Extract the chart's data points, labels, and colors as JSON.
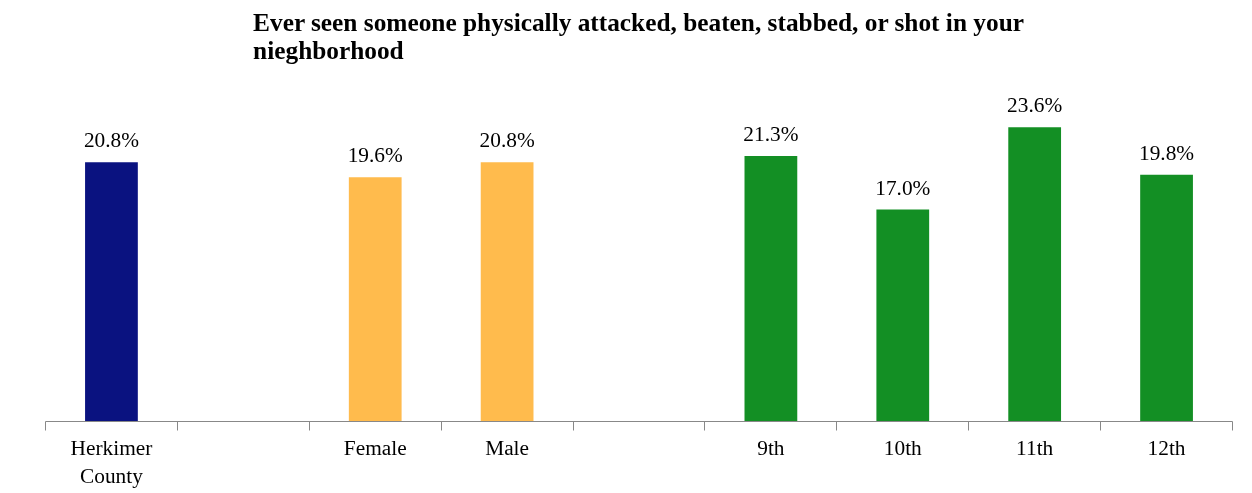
{
  "chart_data": {
    "type": "bar",
    "title": "Ever seen someone physically attacked, beaten, stabbed, or shot in your nieghborhood",
    "categories": [
      "Herkimer County",
      null,
      "Female",
      "Male",
      null,
      "9th",
      "10th",
      "11th",
      "12th"
    ],
    "values": [
      20.8,
      null,
      19.6,
      20.8,
      null,
      21.3,
      17.0,
      23.6,
      19.8
    ],
    "colors": [
      "#0a1280",
      null,
      "#ffbb4d",
      "#ffbb4d",
      null,
      "#138f24",
      "#138f24",
      "#138f24",
      "#138f24"
    ],
    "value_labels": [
      "20.8%",
      null,
      "19.6%",
      "20.8%",
      null,
      "21.3%",
      "17.0%",
      "23.6%",
      "19.8%"
    ],
    "grid": false
  }
}
